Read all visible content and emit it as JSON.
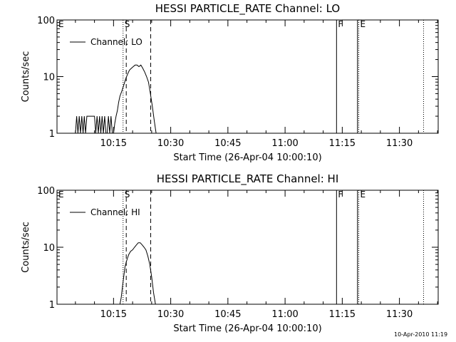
{
  "chart_data": [
    {
      "type": "line",
      "title": "HESSI PARTICLE_RATE Channel: LO",
      "xlabel": "Start Time (26-Apr-04 10:00:10)",
      "ylabel": "Counts/sec",
      "y_scale": "log",
      "ylim": [
        1,
        100
      ],
      "y_ticks": [
        {
          "value": 1,
          "label": "1"
        },
        {
          "value": 10,
          "label": "10"
        },
        {
          "value": 100,
          "label": "100"
        }
      ],
      "xlim": [
        "10:00:10",
        "11:40:10"
      ],
      "x_ticks": [
        "10:15",
        "10:30",
        "10:45",
        "11:00",
        "11:15",
        "11:30"
      ],
      "legend": {
        "position": "top-left",
        "entries": [
          "Channel: LO"
        ]
      },
      "series": [
        {
          "name": "Channel: LO",
          "x": [
            "10:05:00",
            "10:05:20",
            "10:05:40",
            "10:06:00",
            "10:06:20",
            "10:06:40",
            "10:07:00",
            "10:07:20",
            "10:07:40",
            "10:08:00",
            "10:08:30",
            "10:09:00",
            "10:09:30",
            "10:10:00",
            "10:10:20",
            "10:10:40",
            "10:11:00",
            "10:11:20",
            "10:11:40",
            "10:12:00",
            "10:12:20",
            "10:12:40",
            "10:13:00",
            "10:13:20",
            "10:13:40",
            "10:14:00",
            "10:14:20",
            "10:14:40",
            "10:15:00",
            "10:15:20",
            "10:15:40",
            "10:16:00",
            "10:16:20",
            "10:16:40",
            "10:17:10",
            "10:17:40",
            "10:18:10",
            "10:18:40",
            "10:19:10",
            "10:19:40",
            "10:20:10",
            "10:20:40",
            "10:21:10",
            "10:21:40",
            "10:22:10",
            "10:22:40",
            "10:23:10",
            "10:23:40",
            "10:24:10",
            "10:24:40",
            "10:25:10",
            "10:25:40",
            "10:26:10"
          ],
          "y": [
            1,
            2,
            1,
            2,
            1,
            2,
            1,
            2,
            1,
            2,
            2,
            2,
            2,
            2,
            1,
            2,
            1,
            2,
            1,
            2,
            1,
            2,
            1,
            1,
            2,
            1,
            2,
            1,
            1,
            1.5,
            2,
            2.5,
            3.5,
            4.5,
            5.5,
            7,
            9,
            11,
            13,
            14,
            15,
            16,
            16,
            15,
            16,
            14,
            12,
            10,
            8,
            5,
            3,
            1.7,
            1
          ]
        }
      ],
      "markers": [
        {
          "label": "E",
          "x": "10:00:10",
          "style": "dotted"
        },
        {
          "label": "S",
          "x": "10:17:30",
          "style": "dotted"
        },
        {
          "label": "",
          "x": "10:18:20",
          "style": "dashed"
        },
        {
          "label": "",
          "x": "10:24:45",
          "style": "dashed"
        },
        {
          "label": "F",
          "x": "11:13:30",
          "style": "solid"
        },
        {
          "label": "",
          "x": "11:19:00",
          "style": "solid"
        },
        {
          "label": "E",
          "x": "11:19:20",
          "style": "dotted"
        },
        {
          "label": "",
          "x": "11:36:20",
          "style": "dotted"
        }
      ]
    },
    {
      "type": "line",
      "title": "HESSI PARTICLE_RATE Channel: HI",
      "xlabel": "Start Time (26-Apr-04 10:00:10)",
      "ylabel": "Counts/sec",
      "y_scale": "log",
      "ylim": [
        1,
        100
      ],
      "y_ticks": [
        {
          "value": 1,
          "label": "1"
        },
        {
          "value": 10,
          "label": "10"
        },
        {
          "value": 100,
          "label": "100"
        }
      ],
      "xlim": [
        "10:00:10",
        "11:40:10"
      ],
      "x_ticks": [
        "10:15",
        "10:30",
        "10:45",
        "11:00",
        "11:15",
        "11:30"
      ],
      "legend": {
        "position": "top-left",
        "entries": [
          "Channel: HI"
        ]
      },
      "series": [
        {
          "name": "Channel: HI",
          "x": [
            "10:16:40",
            "10:17:00",
            "10:17:20",
            "10:17:40",
            "10:18:00",
            "10:18:20",
            "10:18:40",
            "10:19:00",
            "10:19:30",
            "10:20:00",
            "10:20:30",
            "10:21:00",
            "10:21:30",
            "10:22:00",
            "10:22:30",
            "10:23:00",
            "10:23:30",
            "10:24:00",
            "10:24:30",
            "10:25:00",
            "10:25:30",
            "10:26:00"
          ],
          "y": [
            1,
            1.3,
            2,
            3,
            4.5,
            5.5,
            6.5,
            7.5,
            8.5,
            9,
            10,
            11,
            12,
            12,
            11,
            10,
            9,
            7,
            5,
            3,
            1.6,
            1
          ]
        }
      ],
      "markers": [
        {
          "label": "E",
          "x": "10:00:10",
          "style": "dotted"
        },
        {
          "label": "S",
          "x": "10:17:30",
          "style": "dotted"
        },
        {
          "label": "",
          "x": "10:18:20",
          "style": "dashed"
        },
        {
          "label": "",
          "x": "10:24:45",
          "style": "dashed"
        },
        {
          "label": "F",
          "x": "11:13:30",
          "style": "solid"
        },
        {
          "label": "",
          "x": "11:19:00",
          "style": "solid"
        },
        {
          "label": "E",
          "x": "11:19:20",
          "style": "dotted"
        },
        {
          "label": "",
          "x": "11:36:20",
          "style": "dotted"
        }
      ]
    }
  ],
  "footer": {
    "stamp": "10-Apr-2010 11:19"
  }
}
